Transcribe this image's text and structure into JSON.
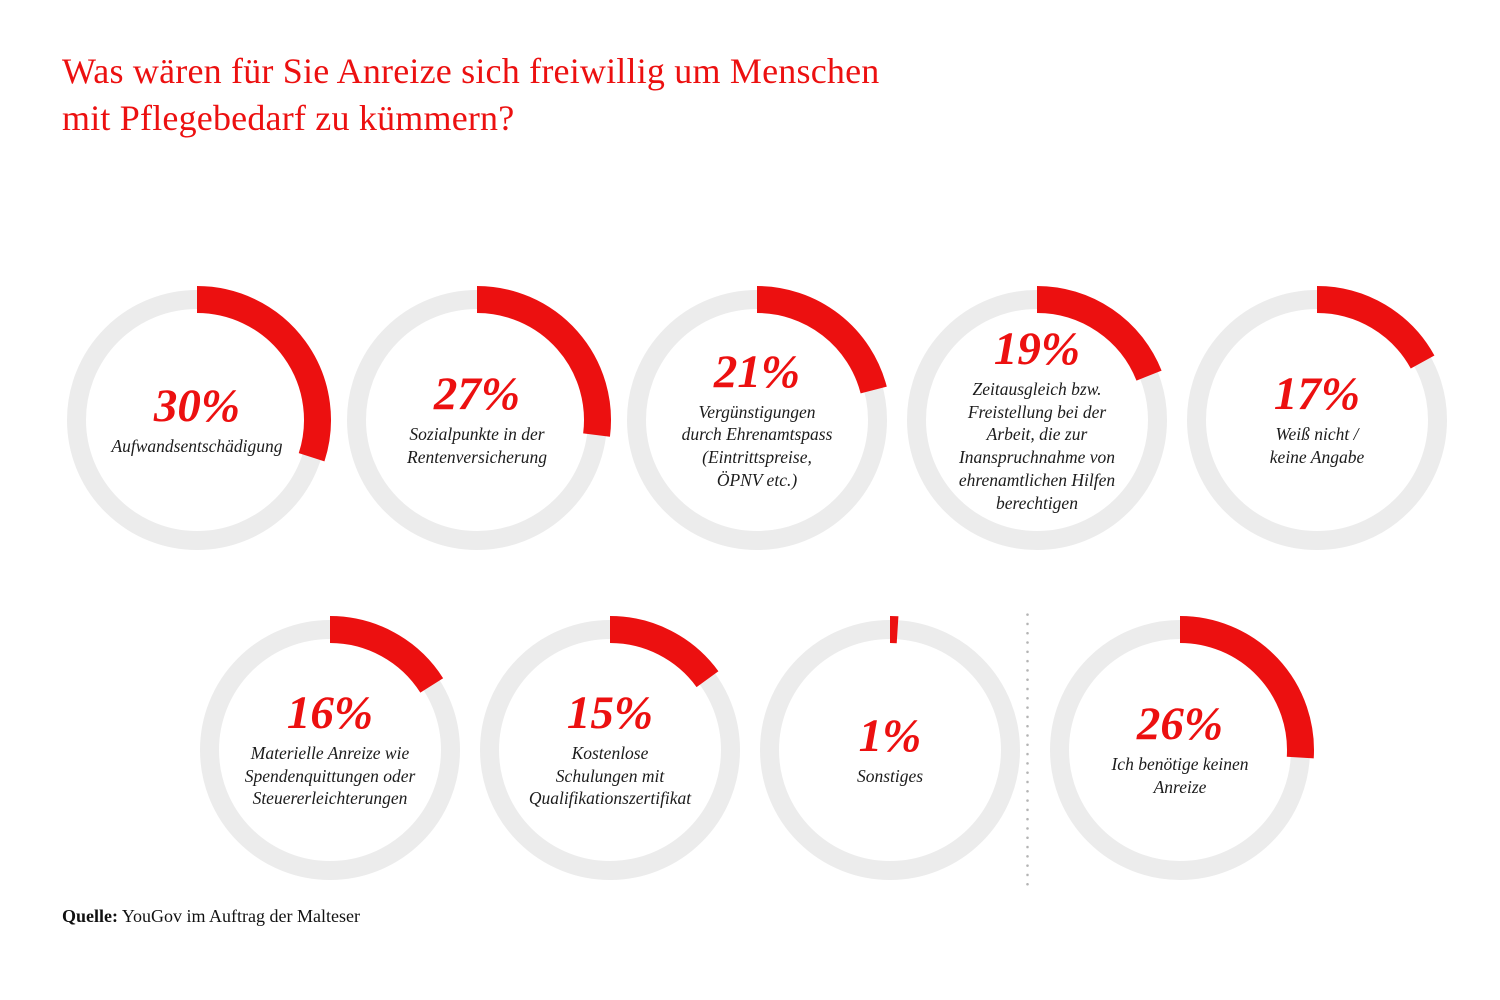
{
  "title": {
    "line1": "Was wären für Sie Anreize sich freiwillig um Menschen",
    "line2": "mit Pflegebedarf zu kümmern?"
  },
  "source": {
    "label": "Quelle:",
    "text": "YouGov im Auftrag der Malteser"
  },
  "colors": {
    "accent_red": "#ec1010",
    "ring_gray": "#ececec",
    "caption_dark": "#1c1c1c",
    "divider_dot_gray": "#b4b4b4"
  },
  "chart_data": {
    "type": "pie",
    "subtype": "donut-grid",
    "unit": "%",
    "value_range": [
      0,
      100
    ],
    "arc_start": "12-oclock",
    "arc_direction": "clockwise",
    "title": "Was wären für Sie Anreize sich freiwillig um Menschen mit Pflegebedarf zu kümmern?",
    "items": [
      {
        "value": 30,
        "label": "Aufwandsentschädigung",
        "row": 1
      },
      {
        "value": 27,
        "label": "Sozialpunkte in der\nRentenversicherung",
        "row": 1
      },
      {
        "value": 21,
        "label": "Vergünstigungen\ndurch Ehrenamtspass\n(Eintrittspreise,\nÖPNV etc.)",
        "row": 1
      },
      {
        "value": 19,
        "label": "Zeitausgleich bzw.\nFreistellung bei der\nArbeit, die zur\nInanspruchnahme von\nehrenamtlichen Hilfen\nberechtigen",
        "row": 1
      },
      {
        "value": 17,
        "label": "Weiß nicht /\nkeine Angabe",
        "row": 1
      },
      {
        "value": 16,
        "label": "Materielle Anreize wie\nSpendenquittungen oder\nSteuererleichterungen",
        "row": 2
      },
      {
        "value": 15,
        "label": "Kostenlose\nSchulungen mit\nQualifikationszertifikat",
        "row": 2
      },
      {
        "value": 1,
        "label": "Sonstiges",
        "row": 2
      },
      {
        "value": 26,
        "label": "Ich benötige keinen\nAnreize",
        "row": 2,
        "divider_before": true
      }
    ]
  }
}
